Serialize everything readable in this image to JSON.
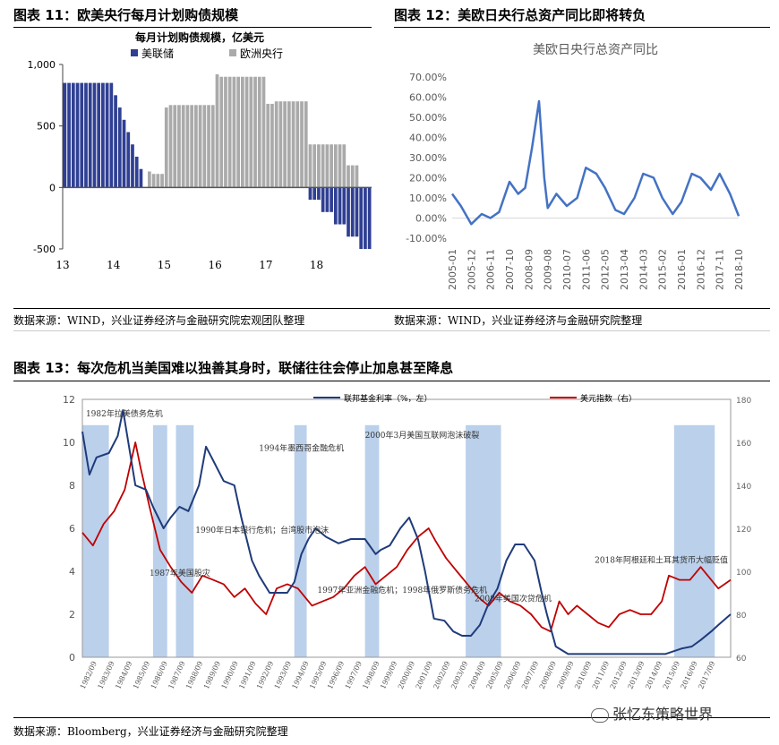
{
  "fig11": {
    "title": "图表 11：欧美央行每月计划购债规模",
    "source": "数据来源：WIND，兴业证券经济与金融研究院宏观团队整理"
  },
  "fig12": {
    "title": "图表 12：美欧日央行总资产同比即将转负",
    "source": "数据来源：WIND，兴业证券经济与金融研究院整理"
  },
  "fig13": {
    "title": "图表 13：每次危机当美国难以独善其身时，联储往往会停止加息甚至降息",
    "source": "数据来源：Bloomberg，兴业证券经济与金融研究院整理"
  },
  "watermark": "张忆东策略世界",
  "chart_data": [
    {
      "id": "fig11",
      "type": "bar",
      "title": "每月计划购债规模，亿美元",
      "legend_position": "top",
      "ylim": [
        -500,
        1000
      ],
      "yticks": [
        "-500",
        "0",
        "500",
        "1,000"
      ],
      "x_tick_labels": [
        "13",
        "14",
        "15",
        "16",
        "17",
        "18"
      ],
      "x_tick_positions": [
        0,
        12,
        24,
        36,
        48,
        60
      ],
      "colors": {
        "美联储": "#2f3f93",
        "欧洲央行": "#aaaaaa"
      },
      "series": [
        {
          "name": "美联储",
          "start_index": 0,
          "values": [
            850,
            850,
            850,
            850,
            850,
            850,
            850,
            850,
            850,
            850,
            850,
            850,
            750,
            650,
            550,
            450,
            350,
            250,
            150,
            0,
            0,
            0,
            0,
            0,
            0,
            0,
            0,
            0,
            0,
            0,
            0,
            0,
            0,
            0,
            0,
            0,
            0,
            0,
            0,
            0,
            0,
            0,
            0,
            0,
            0,
            0,
            0,
            0,
            0,
            0,
            0,
            0,
            0,
            0,
            0,
            0,
            0,
            0,
            -100,
            -100,
            -100,
            -200,
            -200,
            -200,
            -300,
            -300,
            -300,
            -400,
            -400,
            -400,
            -500,
            -500,
            -500
          ]
        },
        {
          "name": "欧洲央行",
          "start_index": 0,
          "values": [
            0,
            0,
            0,
            0,
            0,
            0,
            0,
            0,
            0,
            0,
            0,
            0,
            0,
            0,
            0,
            0,
            0,
            0,
            0,
            0,
            130,
            110,
            110,
            110,
            650,
            670,
            670,
            670,
            670,
            670,
            670,
            670,
            670,
            670,
            670,
            670,
            920,
            900,
            900,
            900,
            900,
            900,
            900,
            900,
            900,
            900,
            900,
            900,
            680,
            680,
            700,
            700,
            700,
            700,
            700,
            700,
            700,
            700,
            350,
            350,
            350,
            350,
            350,
            350,
            350,
            350,
            350,
            180,
            180,
            180,
            0,
            0
          ]
        }
      ]
    },
    {
      "id": "fig12",
      "type": "line",
      "title": "美欧日央行总资产同比",
      "ylim": [
        -10,
        70
      ],
      "yticks": [
        "-10.00%",
        "0.00%",
        "10.00%",
        "20.00%",
        "30.00%",
        "40.00%",
        "50.00%",
        "60.00%",
        "70.00%"
      ],
      "x_tick_labels": [
        "2005-01",
        "2005-12",
        "2006-11",
        "2007-10",
        "2008-09",
        "2009-08",
        "2010-07",
        "2011-06",
        "2012-05",
        "2013-04",
        "2014-03",
        "2015-02",
        "2016-01",
        "2016-12",
        "2017-11",
        "2018-10"
      ],
      "color": "#4472c4",
      "series": [
        {
          "name": "美欧日央行总资产同比",
          "x": [
            "2005-01",
            "2005-06",
            "2005-12",
            "2006-06",
            "2006-11",
            "2007-04",
            "2007-10",
            "2008-03",
            "2008-07",
            "2008-11",
            "2009-03",
            "2009-06",
            "2009-08",
            "2010-01",
            "2010-07",
            "2011-01",
            "2011-06",
            "2011-12",
            "2012-05",
            "2012-11",
            "2013-04",
            "2013-10",
            "2014-03",
            "2014-09",
            "2015-02",
            "2015-08",
            "2016-01",
            "2016-07",
            "2016-12",
            "2017-06",
            "2017-11",
            "2018-05",
            "2018-10"
          ],
          "y": [
            12,
            6,
            -3,
            2,
            0,
            3,
            18,
            12,
            15,
            35,
            58,
            20,
            5,
            12,
            6,
            10,
            25,
            22,
            15,
            4,
            2,
            10,
            22,
            20,
            10,
            2,
            8,
            22,
            20,
            14,
            22,
            12,
            1
          ]
        }
      ]
    },
    {
      "id": "fig13",
      "type": "line",
      "x_tick_labels": [
        "1982/09",
        "1983/09",
        "1984/09",
        "1985/09",
        "1986/09",
        "1987/09",
        "1988/09",
        "1989/09",
        "1990/09",
        "1991/09",
        "1992/09",
        "1993/09",
        "1994/09",
        "1995/09",
        "1996/09",
        "1997/09",
        "1998/09",
        "1999/09",
        "2000/09",
        "2001/09",
        "2002/09",
        "2003/09",
        "2004/09",
        "2005/09",
        "2006/09",
        "2007/09",
        "2008/09",
        "2009/09",
        "2010/09",
        "2011/09",
        "2012/09",
        "2013/09",
        "2014/09",
        "2015/09",
        "2016/09",
        "2017/09"
      ],
      "left_axis": {
        "ylim": [
          0,
          12
        ],
        "ticks": [
          "0",
          "2",
          "4",
          "6",
          "8",
          "10",
          "12"
        ]
      },
      "right_axis": {
        "ylim": [
          60,
          180
        ],
        "ticks": [
          "60",
          "80",
          "100",
          "120",
          "140",
          "160",
          "180"
        ]
      },
      "legend": [
        "联邦基金利率（%，左）",
        "美元指数（右）"
      ],
      "colors": {
        "联邦基金利率（%，左）": "#1f3b7a",
        "美元指数（右）": "#c00000",
        "shade": "#a9c4e6"
      },
      "shaded_periods": [
        [
          1982.0,
          1983.5
        ],
        [
          1986.0,
          1986.8
        ],
        [
          1987.3,
          1988.3
        ],
        [
          1994.0,
          1994.7
        ],
        [
          1998.0,
          1998.8
        ],
        [
          2003.7,
          2005.7
        ],
        [
          2015.5,
          2017.8
        ]
      ],
      "annotations": [
        {
          "text": "1982年拉美债务危机",
          "x": 1982.2,
          "y": 11.2
        },
        {
          "text": "1987年美国股灾",
          "x": 1985.8,
          "y": 3.8
        },
        {
          "text": "1990年日本银行危机；台湾股市泡沫",
          "x": 1988.4,
          "y": 5.8
        },
        {
          "text": "1994年墨西哥金融危机",
          "x": 1992.0,
          "y": 9.6
        },
        {
          "text": "2000年3月美国互联网泡沫破裂",
          "x": 1998.0,
          "y": 10.2
        },
        {
          "text": "1997年亚洲金融危机；1998年俄罗斯债务危机",
          "x": 1995.3,
          "y": 3.0
        },
        {
          "text": "2008年美国次贷危机",
          "x": 2004.2,
          "y": 2.6
        },
        {
          "text": "2018年阿根廷和土耳其货币大幅贬值",
          "x": 2011.0,
          "y": 4.4
        }
      ],
      "series": [
        {
          "name": "联邦基金利率（%，左）",
          "axis": "left",
          "x": [
            1982.0,
            1982.4,
            1982.8,
            1983.5,
            1984.0,
            1984.3,
            1984.6,
            1985.0,
            1985.6,
            1986.0,
            1986.6,
            1987.0,
            1987.5,
            1988.0,
            1988.6,
            1989.0,
            1989.5,
            1990.0,
            1990.6,
            1991.0,
            1991.6,
            1992.0,
            1992.6,
            1993.0,
            1993.6,
            1994.0,
            1994.4,
            1994.8,
            1995.2,
            1995.8,
            1996.5,
            1997.2,
            1998.0,
            1998.6,
            1998.9,
            1999.4,
            2000.0,
            2000.5,
            2001.0,
            2001.4,
            2001.9,
            2002.5,
            2003.0,
            2003.5,
            2004.0,
            2004.5,
            2005.0,
            2005.5,
            2006.0,
            2006.5,
            2007.0,
            2007.6,
            2008.0,
            2008.3,
            2008.8,
            2009.5,
            2011.0,
            2013.0,
            2015.0,
            2015.9,
            2016.5,
            2017.0,
            2017.6,
            2018.0,
            2018.7
          ],
          "y": [
            10.5,
            8.5,
            9.3,
            9.5,
            10.3,
            11.5,
            10.0,
            8.0,
            7.8,
            7.0,
            6.0,
            6.5,
            7.0,
            6.8,
            8.0,
            9.8,
            9.0,
            8.2,
            8.0,
            6.5,
            4.5,
            3.8,
            3.0,
            3.0,
            3.0,
            3.5,
            4.8,
            5.5,
            6.0,
            5.6,
            5.3,
            5.5,
            5.5,
            4.8,
            5.0,
            5.2,
            6.0,
            6.5,
            5.5,
            4.0,
            1.8,
            1.7,
            1.2,
            1.0,
            1.0,
            1.5,
            2.5,
            3.2,
            4.5,
            5.25,
            5.25,
            4.5,
            3.0,
            2.0,
            0.5,
            0.15,
            0.15,
            0.15,
            0.15,
            0.4,
            0.5,
            0.8,
            1.2,
            1.5,
            2.0
          ]
        },
        {
          "name": "美元指数（右）",
          "axis": "right",
          "x": [
            1982.0,
            1982.6,
            1983.2,
            1983.8,
            1984.4,
            1985.0,
            1985.3,
            1985.8,
            1986.4,
            1987.0,
            1987.6,
            1988.2,
            1988.8,
            1989.4,
            1990.0,
            1990.6,
            1991.2,
            1991.8,
            1992.4,
            1993.0,
            1993.6,
            1994.2,
            1995.0,
            1995.6,
            1996.2,
            1996.8,
            1997.4,
            1998.0,
            1998.6,
            1999.2,
            1999.8,
            2000.4,
            2001.0,
            2001.6,
            2002.0,
            2002.6,
            2003.2,
            2003.8,
            2004.4,
            2005.0,
            2005.6,
            2006.2,
            2006.8,
            2007.4,
            2008.0,
            2008.5,
            2009.0,
            2009.5,
            2010.0,
            2010.6,
            2011.2,
            2011.8,
            2012.4,
            2013.0,
            2013.6,
            2014.2,
            2014.8,
            2015.2,
            2015.8,
            2016.4,
            2017.0,
            2017.6,
            2018.0,
            2018.7
          ],
          "y": [
            118,
            112,
            122,
            128,
            138,
            160,
            148,
            130,
            110,
            102,
            95,
            90,
            98,
            96,
            94,
            88,
            92,
            85,
            80,
            92,
            94,
            92,
            84,
            86,
            88,
            92,
            98,
            102,
            94,
            98,
            102,
            110,
            116,
            120,
            114,
            106,
            100,
            94,
            88,
            84,
            90,
            86,
            84,
            80,
            74,
            72,
            86,
            80,
            84,
            80,
            76,
            74,
            80,
            82,
            80,
            80,
            86,
            98,
            96,
            96,
            102,
            96,
            92,
            96
          ]
        }
      ]
    }
  ]
}
